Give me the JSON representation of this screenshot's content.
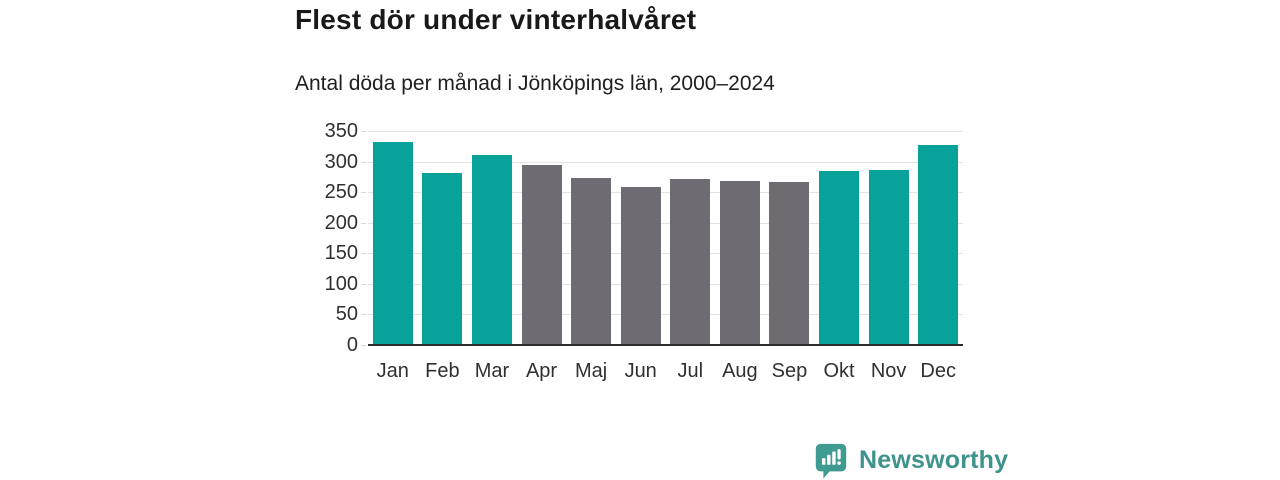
{
  "header": {
    "title": "Flest dör under vinterhalvåret",
    "subtitle": "Antal döda per månad i Jönköpings län, 2000–2024"
  },
  "chart_data": {
    "type": "bar",
    "title": "Flest dör under vinterhalvåret",
    "subtitle": "Antal döda per månad i Jönköpings län, 2000–2024",
    "categories": [
      "Jan",
      "Feb",
      "Mar",
      "Apr",
      "Maj",
      "Jun",
      "Jul",
      "Aug",
      "Sep",
      "Okt",
      "Nov",
      "Dec"
    ],
    "values": [
      332,
      282,
      311,
      295,
      273,
      259,
      271,
      269,
      266,
      284,
      287,
      327
    ],
    "bar_color_keys": [
      "teal",
      "teal",
      "teal",
      "gray",
      "gray",
      "gray",
      "gray",
      "gray",
      "gray",
      "teal",
      "teal",
      "teal"
    ],
    "colors": {
      "teal": "#09a29a",
      "gray": "#6e6c72"
    },
    "xlabel": "",
    "ylabel": "",
    "ylim": [
      0,
      350
    ],
    "yticks": [
      0,
      50,
      100,
      150,
      200,
      250,
      300,
      350
    ],
    "grid": true,
    "legend": false
  },
  "footer": {
    "brand": "Newsworthy",
    "brand_color": "#3e948c",
    "logo_icon": "bar-chart-speech-bubble-icon"
  }
}
